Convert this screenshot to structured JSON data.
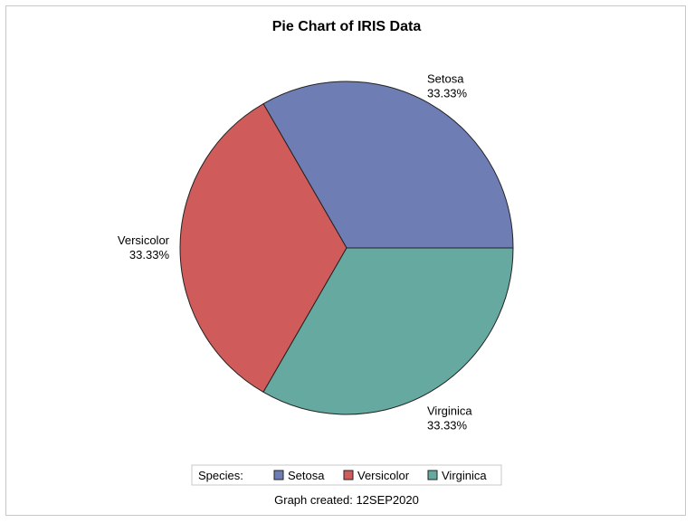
{
  "chart_data": {
    "type": "pie",
    "title": "Pie Chart of IRIS Data",
    "slices": [
      {
        "label": "Setosa",
        "value": 33.33,
        "value_label": "33.33%",
        "color": "#6f7db5"
      },
      {
        "label": "Versicolor",
        "value": 33.33,
        "value_label": "33.33%",
        "color": "#cf5c5a"
      },
      {
        "label": "Virginica",
        "value": 33.33,
        "value_label": "33.33%",
        "color": "#66a9a1"
      }
    ],
    "legend": {
      "title": "Species:",
      "placement": "bottom",
      "entries": [
        "Setosa",
        "Versicolor",
        "Virginica"
      ]
    },
    "footnote": "Graph created: 12SEP2020"
  }
}
